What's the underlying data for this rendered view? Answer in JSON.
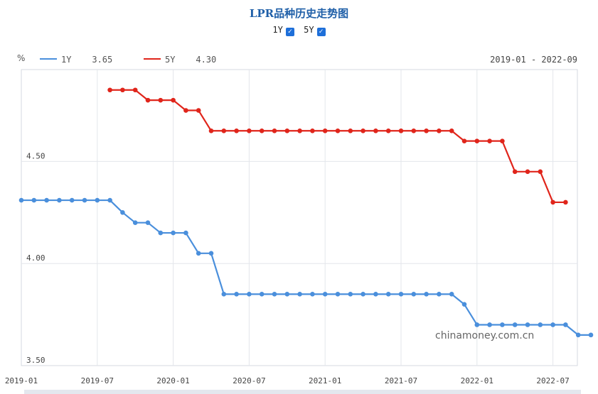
{
  "chart_data": {
    "type": "line",
    "title": "LPR品种历史走势图",
    "unit": "%",
    "date_range": "2019-01 - 2022-09",
    "toggles": [
      {
        "label": "1Y",
        "checked": true
      },
      {
        "label": "5Y",
        "checked": true
      }
    ],
    "x_tick_labels": [
      "2019-01",
      "2019-07",
      "2020-01",
      "2020-07",
      "2021-01",
      "2021-07",
      "2022-01",
      "2022-07"
    ],
    "y_tick_labels": [
      "4.50",
      "4.00",
      "3.50"
    ],
    "ylim": [
      3.5,
      4.95
    ],
    "grid": true,
    "legend_position": "top-left",
    "watermark": "chinamoney.com.cn",
    "series": [
      {
        "name": "1Y",
        "latest": "3.65",
        "color": "#4a8fdc",
        "start_month": "2019-01",
        "values": [
          4.31,
          4.31,
          4.31,
          4.31,
          4.31,
          4.31,
          4.31,
          4.31,
          4.25,
          4.2,
          4.2,
          4.15,
          4.15,
          4.15,
          4.05,
          4.05,
          3.85,
          3.85,
          3.85,
          3.85,
          3.85,
          3.85,
          3.85,
          3.85,
          3.85,
          3.85,
          3.85,
          3.85,
          3.85,
          3.85,
          3.85,
          3.85,
          3.85,
          3.85,
          3.85,
          3.8,
          3.7,
          3.7,
          3.7,
          3.7,
          3.7,
          3.7,
          3.7,
          3.7,
          3.65,
          3.65
        ]
      },
      {
        "name": "5Y",
        "latest": "4.30",
        "color": "#e0251b",
        "start_month": "2019-08",
        "values": [
          4.85,
          4.85,
          4.85,
          4.8,
          4.8,
          4.8,
          4.75,
          4.75,
          4.65,
          4.65,
          4.65,
          4.65,
          4.65,
          4.65,
          4.65,
          4.65,
          4.65,
          4.65,
          4.65,
          4.65,
          4.65,
          4.65,
          4.65,
          4.65,
          4.65,
          4.65,
          4.65,
          4.65,
          4.6,
          4.6,
          4.6,
          4.6,
          4.45,
          4.45,
          4.45,
          4.3,
          4.3
        ]
      }
    ]
  }
}
